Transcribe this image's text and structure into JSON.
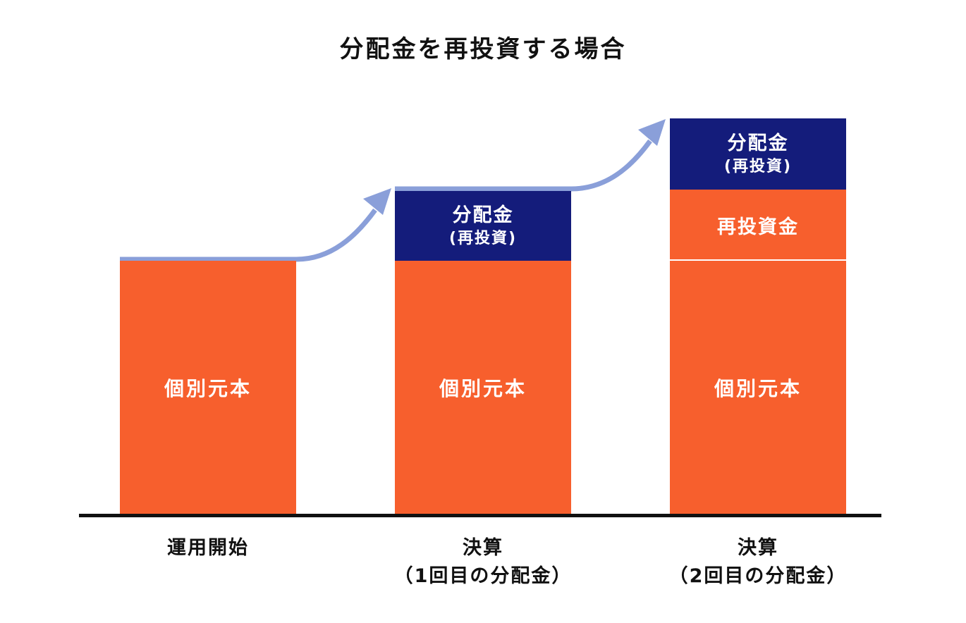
{
  "title": "分配金を再投資する場合",
  "colors": {
    "principal": "#f75f2d",
    "dividend": "#141c7b",
    "arrow": "#8a9fd9",
    "axis": "#111111"
  },
  "bars": [
    {
      "principal_label": "個別元本"
    },
    {
      "principal_label": "個別元本",
      "dividend_label_line1": "分配金",
      "dividend_label_line2": "(再投資)"
    },
    {
      "principal_label": "個別元本",
      "reinvest_label": "再投資金",
      "dividend_label_line1": "分配金",
      "dividend_label_line2": "(再投資)"
    }
  ],
  "x_labels": [
    {
      "line1": "運用開始",
      "line2": ""
    },
    {
      "line1": "決算",
      "line2": "（1回目の分配金）"
    },
    {
      "line1": "決算",
      "line2": "（2回目の分配金）"
    }
  ]
}
